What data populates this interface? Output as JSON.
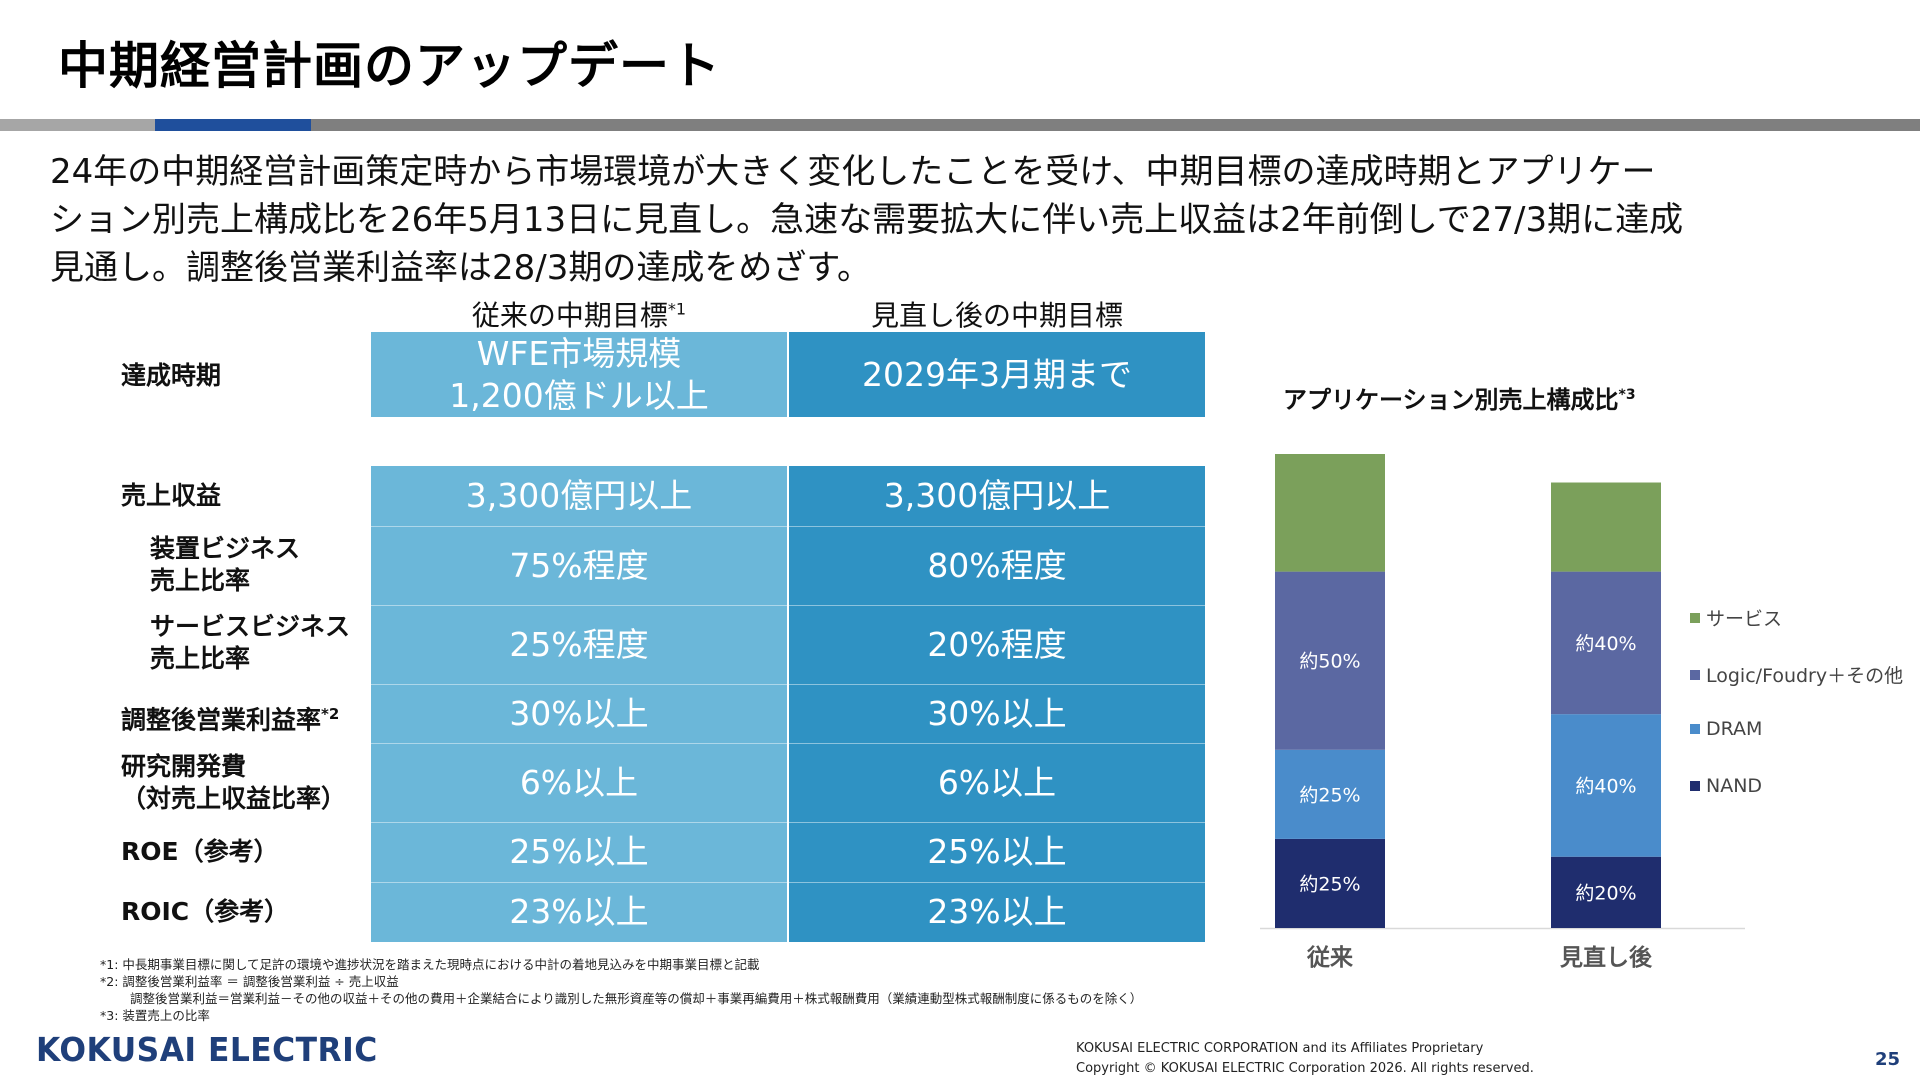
{
  "title": "中期経営計画のアップデート",
  "lead_lines": [
    "24年の中期経営計画策定時から市場環境が大きく変化したことを受け、中期目標の達成時期とアプリケー",
    "ション別売上構成比を26年5月13日に見直し。急速な需要拡大に伴い売上収益は2年前倒しで27/3期に達成",
    "見通し。調整後営業利益率は28/3期の達成をめざす。"
  ],
  "columns": {
    "old": {
      "label": "従来の中期目標",
      "note": "*1"
    },
    "new": {
      "label": "見直し後の中期目標"
    }
  },
  "rows": [
    {
      "label_lines": [
        "達成時期"
      ],
      "note": "",
      "old_lines": [
        "WFE市場規模",
        "1,200億ドル以上"
      ],
      "new_lines": [
        "2029年3月期まで"
      ]
    },
    {
      "label_lines": [
        "売上収益"
      ],
      "note": "",
      "old_lines": [
        "3,300億円以上"
      ],
      "new_lines": [
        "3,300億円以上"
      ]
    },
    {
      "label_lines": [
        "装置ビジネス",
        "売上比率"
      ],
      "note": "",
      "old_lines": [
        "75%程度"
      ],
      "new_lines": [
        "80%程度"
      ]
    },
    {
      "label_lines": [
        "サービスビジネス",
        "売上比率"
      ],
      "note": "",
      "old_lines": [
        "25%程度"
      ],
      "new_lines": [
        "20%程度"
      ]
    },
    {
      "label_lines": [
        "調整後営業利益率"
      ],
      "note": "*2",
      "old_lines": [
        "30%以上"
      ],
      "new_lines": [
        "30%以上"
      ]
    },
    {
      "label_lines": [
        "研究開発費",
        "（対売上収益比率）"
      ],
      "note": "",
      "old_lines": [
        "6%以上"
      ],
      "new_lines": [
        "6%以上"
      ]
    },
    {
      "label_lines": [
        "ROE（参考）"
      ],
      "note": "",
      "old_lines": [
        "25%以上"
      ],
      "new_lines": [
        "25%以上"
      ]
    },
    {
      "label_lines": [
        "ROIC（参考）"
      ],
      "note": "",
      "old_lines": [
        "23%以上"
      ],
      "new_lines": [
        "23%以上"
      ]
    }
  ],
  "chart_data": {
    "type": "bar",
    "stacked": true,
    "title": "アプリケーション別売上構成比",
    "title_note": "*3",
    "categories": [
      "従来",
      "見直し後"
    ],
    "series": [
      {
        "name": "NAND",
        "color": "#1f2d6e",
        "values": [
          25,
          20
        ],
        "labels": [
          "約25%",
          "約20%"
        ]
      },
      {
        "name": "DRAM",
        "color": "#4a8ccb",
        "values": [
          25,
          40
        ],
        "labels": [
          "約25%",
          "約40%"
        ]
      },
      {
        "name": "Logic/Foudry＋その他",
        "color": "#5b68a2",
        "values": [
          50,
          40
        ],
        "labels": [
          "約50%",
          "約40%"
        ]
      },
      {
        "name": "サービス",
        "color": "#7ba05b",
        "values": [
          33,
          25
        ],
        "labels": [
          "",
          ""
        ]
      }
    ],
    "legend_order": [
      "サービス",
      "Logic/Foudry＋その他",
      "DRAM",
      "NAND"
    ],
    "legend_position": "right",
    "ylim": [
      0,
      133
    ],
    "grid": false
  },
  "footnotes": [
    "*1: 中長期事業目標に関して足許の環境や進捗状況を踏まえた現時点における中計の着地見込みを中期事業目標と記載",
    "*2:  調整後営業利益率 ＝ 調整後営業利益 ÷ 売上収益",
    "調整後営業利益＝営業利益－その他の収益＋その他の費用＋企業結合により識別した無形資産等の償却＋事業再編費用＋株式報酬費用（業績連動型株式報酬制度に係るものを除く）",
    "*3: 装置売上の比率"
  ],
  "logo_text": "KOKUSAI ELECTRIC",
  "copyright_lines": [
    "KOKUSAI ELECTRIC CORPORATION and its Affiliates Proprietary",
    "Copyright © KOKUSAI ELECTRIC Corporation 2026. All rights reserved."
  ],
  "page_number": "25",
  "colors": {
    "old_column": "#6bb7d9",
    "new_column": "#2f92c3",
    "rule_gray": "#a6a6a6",
    "rule_blue": "#1f4f9c",
    "rule_dark": "#7f7f7f",
    "brand": "#1f3f7a"
  }
}
